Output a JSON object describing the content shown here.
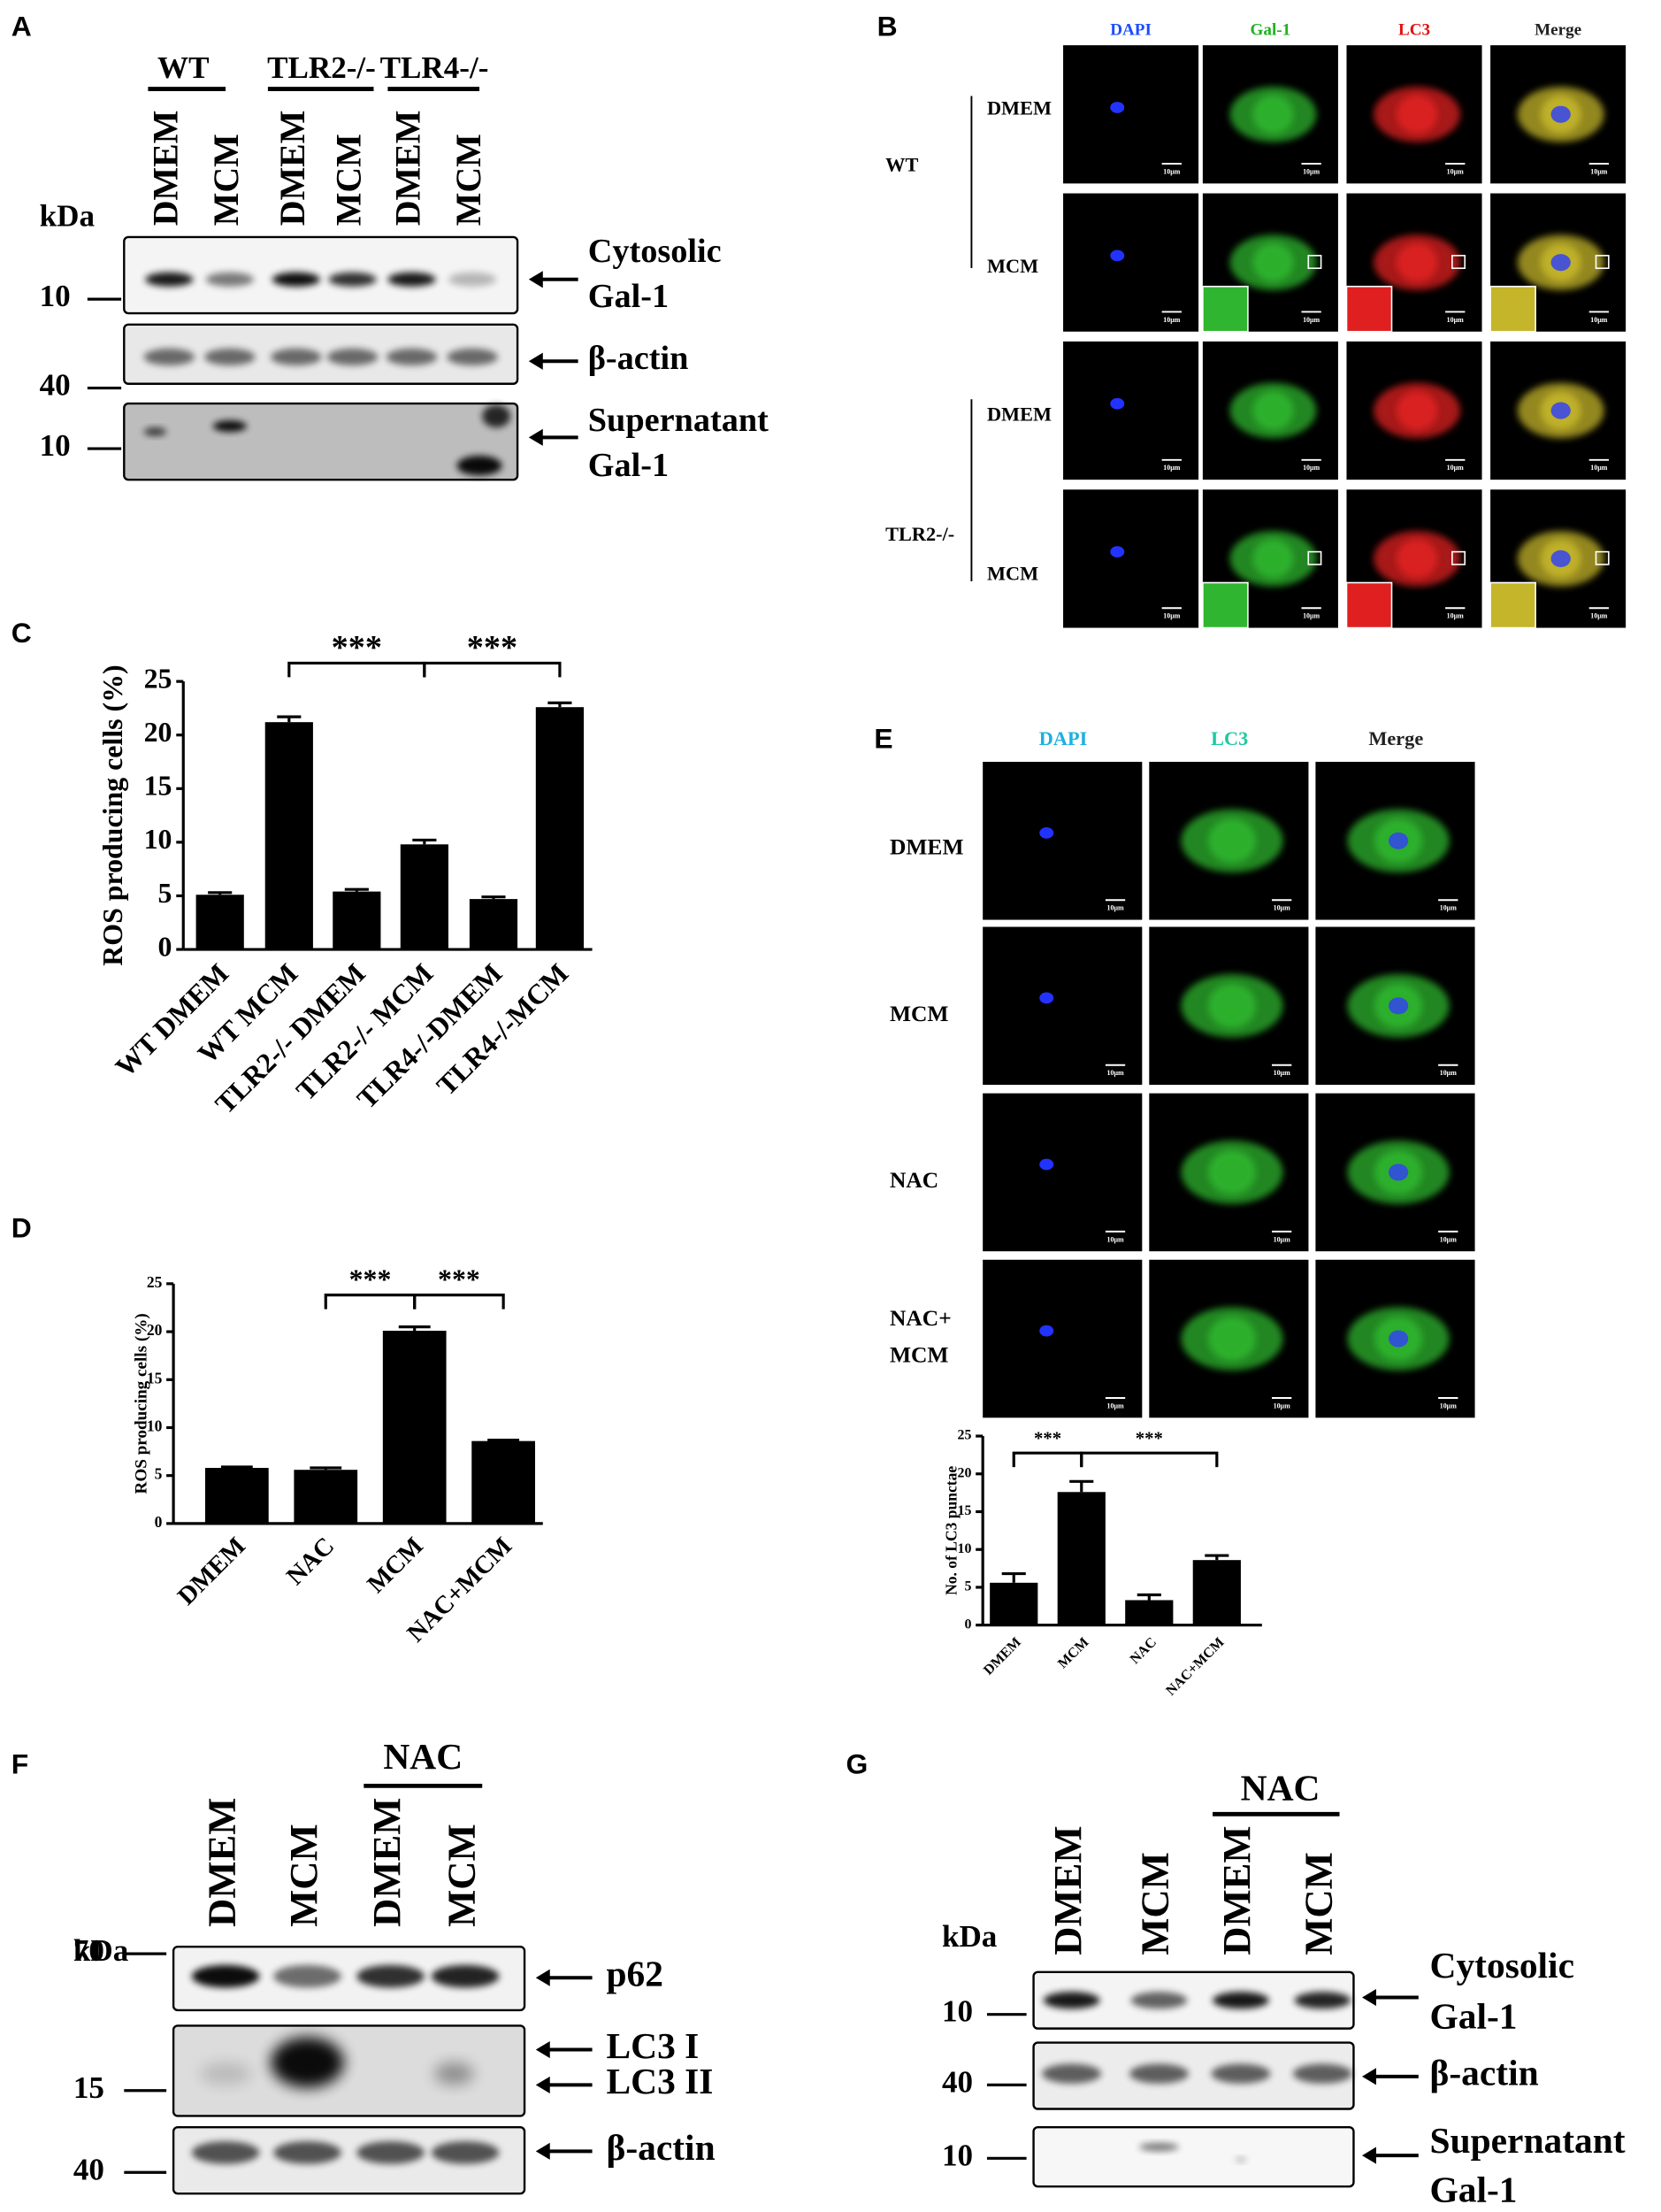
{
  "panels": {
    "a": {
      "label": "A",
      "groups": [
        "WT",
        "TLR2-/-",
        "TLR4-/-"
      ],
      "lanes": [
        "DMEM",
        "MCM",
        "DMEM",
        "MCM",
        "DMEM",
        "MCM"
      ],
      "kda": "kDa",
      "markers": [
        "10",
        "40",
        "10"
      ],
      "blots": [
        [
          "Cytosolic",
          "Gal-1"
        ],
        [
          "β-actin"
        ],
        [
          "Supernatant",
          "Gal-1"
        ]
      ]
    },
    "b": {
      "label": "B",
      "columns": [
        "DAPI",
        "Gal-1",
        "LC3",
        "Merge"
      ],
      "groups": [
        {
          "name": "WT",
          "rows": [
            "DMEM",
            "MCM"
          ]
        },
        {
          "name": "TLR2-/-",
          "rows": [
            "DMEM",
            "MCM"
          ]
        }
      ],
      "scale_bar": "10μm"
    },
    "e": {
      "label": "E",
      "columns": [
        "DAPI",
        "LC3",
        "Merge"
      ],
      "rows": [
        [
          "DMEM"
        ],
        [
          "MCM"
        ],
        [
          "NAC"
        ],
        [
          "NAC+",
          "MCM"
        ]
      ],
      "scale_bar": "10μm"
    },
    "f": {
      "label": "F",
      "treatment": "NAC",
      "lanes": [
        "DMEM",
        "MCM",
        "DMEM",
        "MCM"
      ],
      "kda": "kDa",
      "markers": [
        "70",
        "15",
        "40"
      ],
      "blots": [
        "p62",
        "LC3 I",
        "LC3 II",
        "β-actin"
      ]
    },
    "g": {
      "label": "G",
      "treatment": "NAC",
      "lanes": [
        "DMEM",
        "MCM",
        "DMEM",
        "MCM"
      ],
      "kda": "kDa",
      "markers": [
        "10",
        "40",
        "10"
      ],
      "blots": [
        [
          "Cytosolic",
          "Gal-1"
        ],
        [
          "β-actin"
        ],
        [
          "Supernatant",
          "Gal-1"
        ]
      ]
    }
  },
  "chart_data": [
    {
      "type": "bar",
      "label": "C",
      "y_label": "ROS producing cells (%)",
      "categories": [
        "WT DMEM",
        "WT MCM",
        "TLR2-/- DMEM",
        "TLR2-/- MCM",
        "TLR4-/-DMEM",
        "TLR4-/-MCM"
      ],
      "values": [
        5.1,
        21.2,
        5.4,
        9.8,
        4.7,
        22.6
      ],
      "errors": [
        0.2,
        0.5,
        0.2,
        0.4,
        0.2,
        0.4
      ],
      "color": "#000000",
      "ylim": [
        0,
        25
      ],
      "yticks": [
        0,
        5,
        10,
        15,
        20,
        25
      ],
      "annotations": [
        "***",
        "***"
      ]
    },
    {
      "type": "bar",
      "label": "D",
      "y_label": "ROS producing cells (%)",
      "categories": [
        "DMEM",
        "NAC",
        "MCM",
        "NAC+MCM"
      ],
      "values": [
        5.8,
        5.6,
        20.1,
        8.6
      ],
      "errors": [
        0.1,
        0.2,
        0.4,
        0.1
      ],
      "color": "#000000",
      "ylim": [
        0,
        25
      ],
      "yticks": [
        0,
        5,
        10,
        15,
        20,
        25
      ],
      "annotations": [
        "***",
        "***"
      ]
    },
    {
      "type": "bar",
      "y_label": "No. of LC3 punctae",
      "categories": [
        "DMEM",
        "MCM",
        "NAC",
        "NAC+MCM"
      ],
      "values": [
        5.6,
        17.6,
        3.3,
        8.6
      ],
      "errors": [
        1.2,
        1.4,
        0.7,
        0.6
      ],
      "color": "#000000",
      "ylim": [
        0,
        25
      ],
      "yticks": [
        0,
        5,
        10,
        15,
        20,
        25
      ],
      "annotations": [
        "***",
        "***"
      ]
    }
  ]
}
